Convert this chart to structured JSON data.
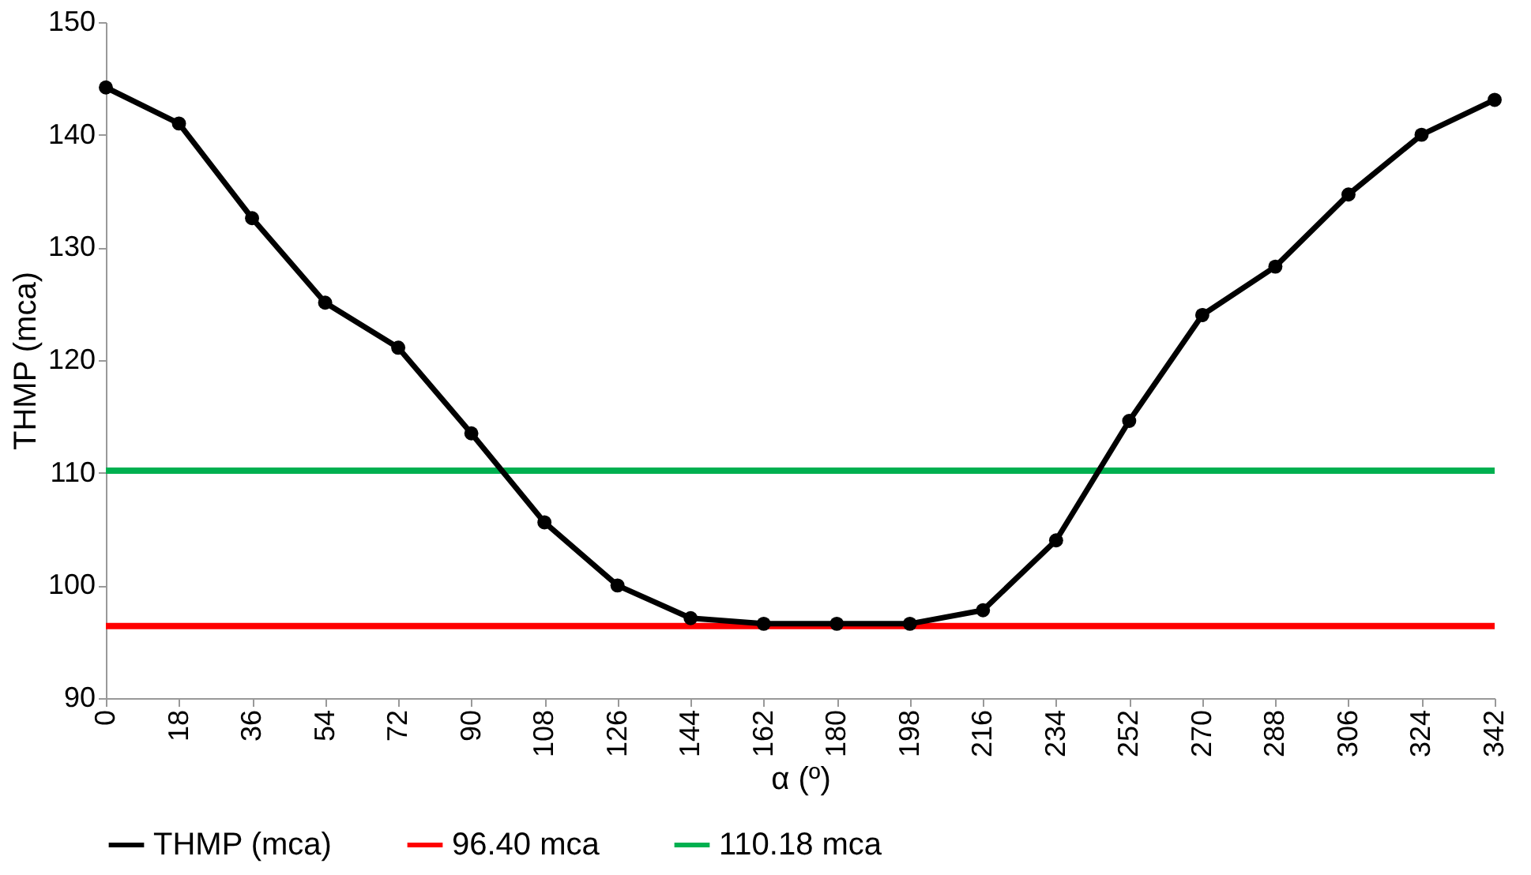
{
  "chart_data": {
    "type": "line",
    "xlabel": "α (º)",
    "ylabel": "THMP (mca)",
    "x": [
      0,
      18,
      36,
      54,
      72,
      90,
      108,
      126,
      144,
      162,
      180,
      198,
      216,
      234,
      252,
      270,
      288,
      306,
      324,
      342
    ],
    "series": [
      {
        "name": "THMP (mca)",
        "color": "#000000",
        "values": [
          144.2,
          141,
          132.6,
          125.1,
          121.1,
          113.5,
          105.6,
          100,
          97.1,
          96.6,
          96.6,
          96.6,
          97.8,
          104,
          114.6,
          124,
          128.3,
          134.7,
          140,
          143.1
        ]
      }
    ],
    "ref_lines": [
      {
        "axis": "y",
        "value": 96.4,
        "label": "96.40 mca",
        "color": "#ff0000"
      },
      {
        "axis": "y",
        "value": 110.18,
        "label": "110.18 mca",
        "color": "#00b050"
      }
    ],
    "xlim": [
      0,
      342
    ],
    "xticks": [
      0,
      18,
      36,
      54,
      72,
      90,
      108,
      126,
      144,
      162,
      180,
      198,
      216,
      234,
      252,
      270,
      288,
      306,
      324,
      342
    ],
    "ylim": [
      90,
      150
    ],
    "yticks": [
      90,
      100,
      110,
      120,
      130,
      140,
      150
    ],
    "grid": false,
    "legend": "bottom",
    "marker": "circle",
    "line_style": "solid"
  }
}
